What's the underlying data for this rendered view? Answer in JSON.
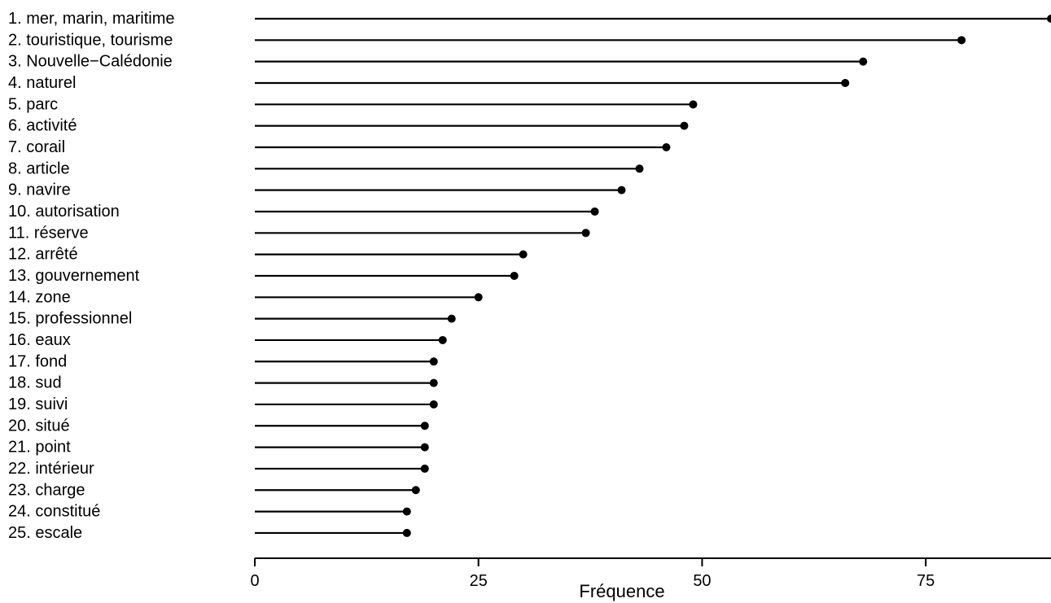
{
  "chart_data": {
    "type": "lollipop",
    "orientation": "horizontal",
    "categories": [
      "1.  mer, marin, maritime",
      "2.  touristique, tourisme",
      "3.  Nouvelle−Calédonie",
      "4.  naturel",
      "5.  parc",
      "6.  activité",
      "7.  corail",
      "8.  article",
      "9.  navire",
      "10.  autorisation",
      "11.  réserve",
      "12.  arrêté",
      "13.  gouvernement",
      "14.  zone",
      "15.  professionnel",
      "16.  eaux",
      "17.  fond",
      "18.  sud",
      "19.  suivi",
      "20.  situé",
      "21.  point",
      "22.  intérieur",
      "23.  charge",
      "24.  constitué",
      "25.  escale"
    ],
    "values": [
      89,
      79,
      68,
      66,
      49,
      48,
      46,
      43,
      41,
      38,
      37,
      30,
      29,
      25,
      22,
      21,
      20,
      20,
      20,
      19,
      19,
      19,
      18,
      17,
      17
    ],
    "xlabel": "Fréquence",
    "ylabel": "",
    "xlim": [
      0,
      89
    ],
    "xticks": [
      0,
      25,
      50,
      75
    ],
    "xtick_labels": [
      "0",
      "25",
      "50",
      "75"
    ],
    "grid": false,
    "legend": "none",
    "colors": {
      "line": "#000000",
      "point": "#000000",
      "axis": "#000000",
      "background": "#ffffff"
    }
  }
}
